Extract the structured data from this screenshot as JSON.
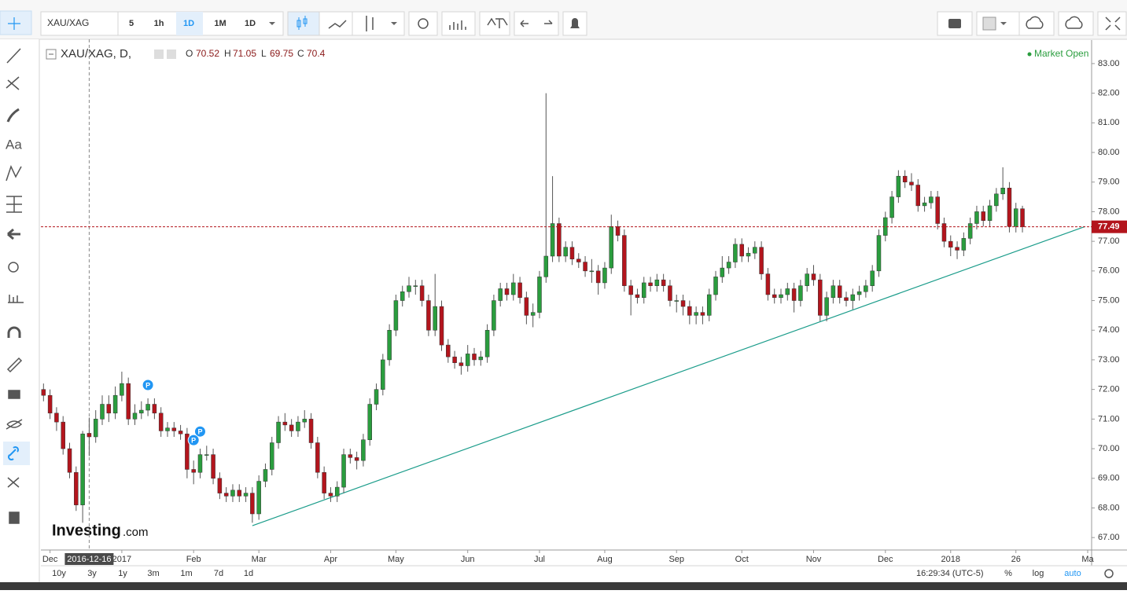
{
  "toolbar": {
    "symbol": "XAU/XAG",
    "intervals": [
      "5",
      "1h",
      "1D",
      "1M",
      "1D"
    ]
  },
  "sidebar": {
    "text_tool": "Aa"
  },
  "chart_data": {
    "type": "candlestick",
    "title": "XAU/XAG, D,",
    "status": "Market Open",
    "legend_labels": [
      "O",
      "H",
      "L",
      "C"
    ],
    "colors": {
      "up": "#2a9d3e",
      "down": "#b3151d",
      "trendline": "#1a9c8a"
    },
    "xlim": [
      -0.4,
      160.6
    ],
    "ylim": [
      66.58,
      83.82
    ],
    "yticks": [
      {
        "value": 67,
        "label": "67.00"
      },
      {
        "value": 68,
        "label": "68.00"
      },
      {
        "value": 69,
        "label": "69.00"
      },
      {
        "value": 70,
        "label": "70.00"
      },
      {
        "value": 71,
        "label": "71.00"
      },
      {
        "value": 72,
        "label": "72.00"
      },
      {
        "value": 73,
        "label": "73.00"
      },
      {
        "value": 74,
        "label": "74.00"
      },
      {
        "value": 75,
        "label": "75.00"
      },
      {
        "value": 76,
        "label": "76.00"
      },
      {
        "value": 77,
        "label": "77.00"
      },
      {
        "value": 78,
        "label": "78.00"
      },
      {
        "value": 79,
        "label": "79.00"
      },
      {
        "value": 80,
        "label": "80.00"
      },
      {
        "value": 81,
        "label": "81.00"
      },
      {
        "value": 82,
        "label": "82.00"
      },
      {
        "value": 83,
        "label": "83.00"
      }
    ],
    "xticks": [
      {
        "value": 1,
        "label": "Dec"
      },
      {
        "value": 12,
        "label": "2017"
      },
      {
        "value": 23,
        "label": "Feb"
      },
      {
        "value": 33,
        "label": "Mar"
      },
      {
        "value": 44,
        "label": "Apr"
      },
      {
        "value": 54,
        "label": "May"
      },
      {
        "value": 65,
        "label": "Jun"
      },
      {
        "value": 76,
        "label": "Jul"
      },
      {
        "value": 86,
        "label": "Aug"
      },
      {
        "value": 97,
        "label": "Sep"
      },
      {
        "value": 107,
        "label": "Oct"
      },
      {
        "value": 118,
        "label": "Nov"
      },
      {
        "value": 129,
        "label": "Dec"
      },
      {
        "value": 139,
        "label": "2018"
      },
      {
        "value": 149,
        "label": "26"
      },
      {
        "value": 160,
        "label": "Ma"
      }
    ],
    "crosshair": {
      "value": 7,
      "label": "2016-12-16"
    },
    "trendline": [
      [
        32,
        67.4
      ],
      [
        159.6,
        77.5
      ]
    ],
    "markers": [
      {
        "label": "P",
        "x": 16,
        "y": 72.15
      },
      {
        "label": "P",
        "x": 24,
        "y": 70.58
      },
      {
        "label": "P",
        "x": 23,
        "y": 70.29
      }
    ],
    "watermark": [
      "Investing",
      ".com"
    ],
    "ohlc": [
      [
        72.0,
        72.2,
        71.6,
        71.8
      ],
      [
        71.8,
        72.0,
        71.0,
        71.2
      ],
      [
        71.2,
        71.4,
        70.6,
        70.9
      ],
      [
        70.9,
        71.1,
        69.8,
        70.0
      ],
      [
        70.0,
        70.2,
        69.0,
        69.2
      ],
      [
        69.2,
        69.4,
        67.9,
        68.1
      ],
      [
        68.1,
        70.6,
        67.5,
        70.5
      ],
      [
        70.52,
        71.05,
        69.75,
        70.4
      ],
      [
        70.4,
        71.3,
        70.2,
        71.0
      ],
      [
        71.0,
        71.8,
        70.8,
        71.5
      ],
      [
        71.5,
        71.8,
        70.9,
        71.2
      ],
      [
        71.2,
        72.1,
        71.0,
        71.8
      ],
      [
        71.8,
        72.6,
        71.6,
        72.2
      ],
      [
        72.2,
        72.4,
        70.8,
        71.0
      ],
      [
        71.0,
        71.5,
        70.8,
        71.2
      ],
      [
        71.2,
        71.6,
        71.0,
        71.3
      ],
      [
        71.3,
        71.7,
        71.1,
        71.5
      ],
      [
        71.5,
        71.7,
        71.0,
        71.2
      ],
      [
        71.2,
        71.4,
        70.4,
        70.6
      ],
      [
        70.6,
        70.9,
        70.4,
        70.7
      ],
      [
        70.7,
        70.9,
        70.4,
        70.6
      ],
      [
        70.6,
        70.8,
        70.3,
        70.5
      ],
      [
        70.5,
        70.7,
        69.0,
        69.3
      ],
      [
        69.3,
        69.6,
        68.8,
        69.2
      ],
      [
        69.2,
        70.0,
        69.0,
        69.8
      ],
      [
        69.8,
        70.1,
        69.6,
        69.8
      ],
      [
        69.8,
        70.0,
        68.8,
        69.0
      ],
      [
        69.0,
        69.2,
        68.3,
        68.5
      ],
      [
        68.5,
        68.7,
        68.2,
        68.4
      ],
      [
        68.4,
        68.8,
        68.2,
        68.6
      ],
      [
        68.6,
        68.8,
        68.2,
        68.4
      ],
      [
        68.4,
        68.7,
        68.2,
        68.5
      ],
      [
        68.5,
        68.7,
        67.5,
        67.8
      ],
      [
        67.8,
        69.1,
        67.6,
        68.9
      ],
      [
        68.9,
        69.5,
        68.7,
        69.3
      ],
      [
        69.3,
        70.4,
        69.1,
        70.2
      ],
      [
        70.2,
        71.1,
        70.0,
        70.9
      ],
      [
        70.9,
        71.2,
        70.6,
        70.8
      ],
      [
        70.8,
        71.0,
        70.4,
        70.6
      ],
      [
        70.6,
        71.1,
        70.4,
        70.9
      ],
      [
        70.9,
        71.3,
        70.7,
        71.0
      ],
      [
        71.0,
        71.2,
        70.0,
        70.2
      ],
      [
        70.2,
        70.4,
        69.0,
        69.2
      ],
      [
        69.2,
        69.4,
        68.3,
        68.5
      ],
      [
        68.5,
        68.7,
        68.2,
        68.4
      ],
      [
        68.4,
        68.9,
        68.2,
        68.7
      ],
      [
        68.7,
        70.0,
        68.5,
        69.8
      ],
      [
        69.8,
        70.0,
        69.5,
        69.7
      ],
      [
        69.7,
        69.9,
        69.3,
        69.6
      ],
      [
        69.6,
        70.5,
        69.4,
        70.3
      ],
      [
        70.3,
        71.7,
        70.1,
        71.5
      ],
      [
        71.5,
        72.2,
        71.3,
        72.0
      ],
      [
        72.0,
        73.2,
        71.8,
        73.0
      ],
      [
        73.0,
        74.2,
        72.8,
        74.0
      ],
      [
        74.0,
        75.2,
        73.8,
        75.0
      ],
      [
        75.0,
        75.5,
        74.8,
        75.3
      ],
      [
        75.3,
        75.8,
        75.1,
        75.5
      ],
      [
        75.5,
        75.7,
        75.2,
        75.5
      ],
      [
        75.5,
        75.7,
        74.8,
        75.0
      ],
      [
        75.0,
        75.2,
        73.8,
        74.0
      ],
      [
        74.0,
        75.9,
        73.8,
        74.8
      ],
      [
        74.8,
        75.0,
        73.3,
        73.5
      ],
      [
        73.5,
        73.7,
        72.9,
        73.1
      ],
      [
        73.1,
        73.3,
        72.7,
        72.9
      ],
      [
        72.9,
        73.1,
        72.5,
        72.8
      ],
      [
        72.8,
        73.5,
        72.6,
        73.2
      ],
      [
        73.2,
        73.4,
        72.8,
        73.0
      ],
      [
        73.0,
        73.3,
        72.8,
        73.1
      ],
      [
        73.1,
        74.2,
        72.9,
        74.0
      ],
      [
        74.0,
        75.2,
        73.8,
        75.0
      ],
      [
        75.0,
        75.6,
        74.8,
        75.4
      ],
      [
        75.4,
        75.6,
        75.0,
        75.2
      ],
      [
        75.2,
        75.9,
        75.0,
        75.6
      ],
      [
        75.6,
        75.8,
        74.9,
        75.1
      ],
      [
        75.1,
        75.3,
        74.2,
        74.5
      ],
      [
        74.5,
        74.9,
        74.1,
        74.6
      ],
      [
        74.6,
        76.0,
        74.4,
        75.8
      ],
      [
        75.8,
        82.0,
        75.6,
        76.5
      ],
      [
        76.5,
        79.2,
        76.3,
        77.6
      ],
      [
        77.6,
        77.8,
        76.3,
        76.5
      ],
      [
        76.5,
        77.0,
        76.3,
        76.8
      ],
      [
        76.8,
        77.0,
        76.2,
        76.4
      ],
      [
        76.4,
        76.6,
        76.1,
        76.3
      ],
      [
        76.3,
        76.5,
        75.8,
        76.0
      ],
      [
        76.0,
        76.4,
        75.6,
        76.0
      ],
      [
        76.0,
        76.2,
        75.2,
        75.6
      ],
      [
        75.6,
        76.3,
        75.4,
        76.1
      ],
      [
        76.1,
        77.9,
        75.9,
        77.5
      ],
      [
        77.5,
        77.7,
        77.0,
        77.2
      ],
      [
        77.2,
        77.4,
        75.3,
        75.5
      ],
      [
        75.5,
        75.7,
        74.5,
        75.2
      ],
      [
        75.2,
        75.4,
        74.9,
        75.1
      ],
      [
        75.1,
        75.8,
        74.9,
        75.6
      ],
      [
        75.6,
        75.8,
        75.3,
        75.5
      ],
      [
        75.5,
        75.9,
        75.3,
        75.7
      ],
      [
        75.7,
        75.9,
        75.3,
        75.5
      ],
      [
        75.5,
        75.7,
        74.8,
        75.0
      ],
      [
        75.0,
        75.2,
        74.6,
        75.0
      ],
      [
        75.0,
        75.2,
        74.5,
        74.8
      ],
      [
        74.8,
        75.0,
        74.2,
        74.5
      ],
      [
        74.5,
        74.8,
        74.2,
        74.6
      ],
      [
        74.6,
        74.8,
        74.2,
        74.5
      ],
      [
        74.5,
        75.4,
        74.3,
        75.2
      ],
      [
        75.2,
        76.0,
        75.0,
        75.8
      ],
      [
        75.8,
        76.5,
        75.6,
        76.1
      ],
      [
        76.1,
        76.5,
        75.9,
        76.3
      ],
      [
        76.3,
        77.1,
        76.1,
        76.9
      ],
      [
        76.9,
        77.1,
        76.3,
        76.5
      ],
      [
        76.5,
        76.8,
        76.3,
        76.6
      ],
      [
        76.6,
        77.0,
        76.4,
        76.8
      ],
      [
        76.8,
        77.0,
        75.7,
        75.9
      ],
      [
        75.9,
        76.1,
        75.0,
        75.2
      ],
      [
        75.2,
        75.4,
        74.9,
        75.1
      ],
      [
        75.1,
        75.4,
        74.9,
        75.2
      ],
      [
        75.2,
        75.6,
        75.0,
        75.4
      ],
      [
        75.4,
        75.6,
        74.6,
        75.0
      ],
      [
        75.0,
        75.7,
        74.8,
        75.5
      ],
      [
        75.5,
        76.1,
        75.3,
        75.9
      ],
      [
        75.9,
        76.2,
        75.5,
        75.7
      ],
      [
        75.7,
        75.9,
        74.3,
        74.5
      ],
      [
        74.5,
        75.3,
        74.3,
        75.1
      ],
      [
        75.1,
        75.7,
        74.9,
        75.5
      ],
      [
        75.5,
        75.7,
        74.9,
        75.1
      ],
      [
        75.1,
        75.3,
        74.8,
        75.0
      ],
      [
        75.0,
        75.4,
        74.7,
        75.2
      ],
      [
        75.2,
        75.5,
        75.0,
        75.3
      ],
      [
        75.3,
        75.7,
        75.1,
        75.5
      ],
      [
        75.5,
        76.2,
        75.3,
        76.0
      ],
      [
        76.0,
        77.4,
        75.8,
        77.2
      ],
      [
        77.2,
        78.0,
        77.0,
        77.8
      ],
      [
        77.8,
        78.7,
        77.6,
        78.5
      ],
      [
        78.5,
        79.4,
        78.3,
        79.2
      ],
      [
        79.2,
        79.4,
        78.8,
        79.0
      ],
      [
        79.0,
        79.3,
        78.7,
        78.9
      ],
      [
        78.9,
        79.1,
        78.0,
        78.2
      ],
      [
        78.2,
        78.5,
        78.0,
        78.3
      ],
      [
        78.3,
        78.7,
        78.1,
        78.5
      ],
      [
        78.5,
        78.7,
        77.4,
        77.6
      ],
      [
        77.6,
        77.8,
        76.8,
        77.0
      ],
      [
        77.0,
        77.2,
        76.5,
        76.8
      ],
      [
        76.8,
        77.0,
        76.4,
        76.7
      ],
      [
        76.7,
        77.3,
        76.5,
        77.1
      ],
      [
        77.1,
        77.8,
        76.9,
        77.6
      ],
      [
        77.6,
        78.2,
        77.4,
        78.0
      ],
      [
        78.0,
        78.2,
        77.5,
        77.7
      ],
      [
        77.7,
        78.4,
        77.5,
        78.2
      ],
      [
        78.2,
        78.8,
        78.0,
        78.6
      ],
      [
        78.6,
        79.5,
        78.4,
        78.8
      ],
      [
        78.8,
        79.0,
        77.3,
        77.5
      ],
      [
        77.5,
        78.3,
        77.3,
        78.1
      ],
      [
        78.1,
        78.2,
        77.3,
        77.49
      ]
    ]
  },
  "bottom_bar": {
    "ranges": [
      "10y",
      "3y",
      "1y",
      "3m",
      "1m",
      "7d",
      "1d"
    ],
    "time": "16:29:34 (UTC-5)",
    "options": [
      "%",
      "log",
      "auto"
    ]
  }
}
